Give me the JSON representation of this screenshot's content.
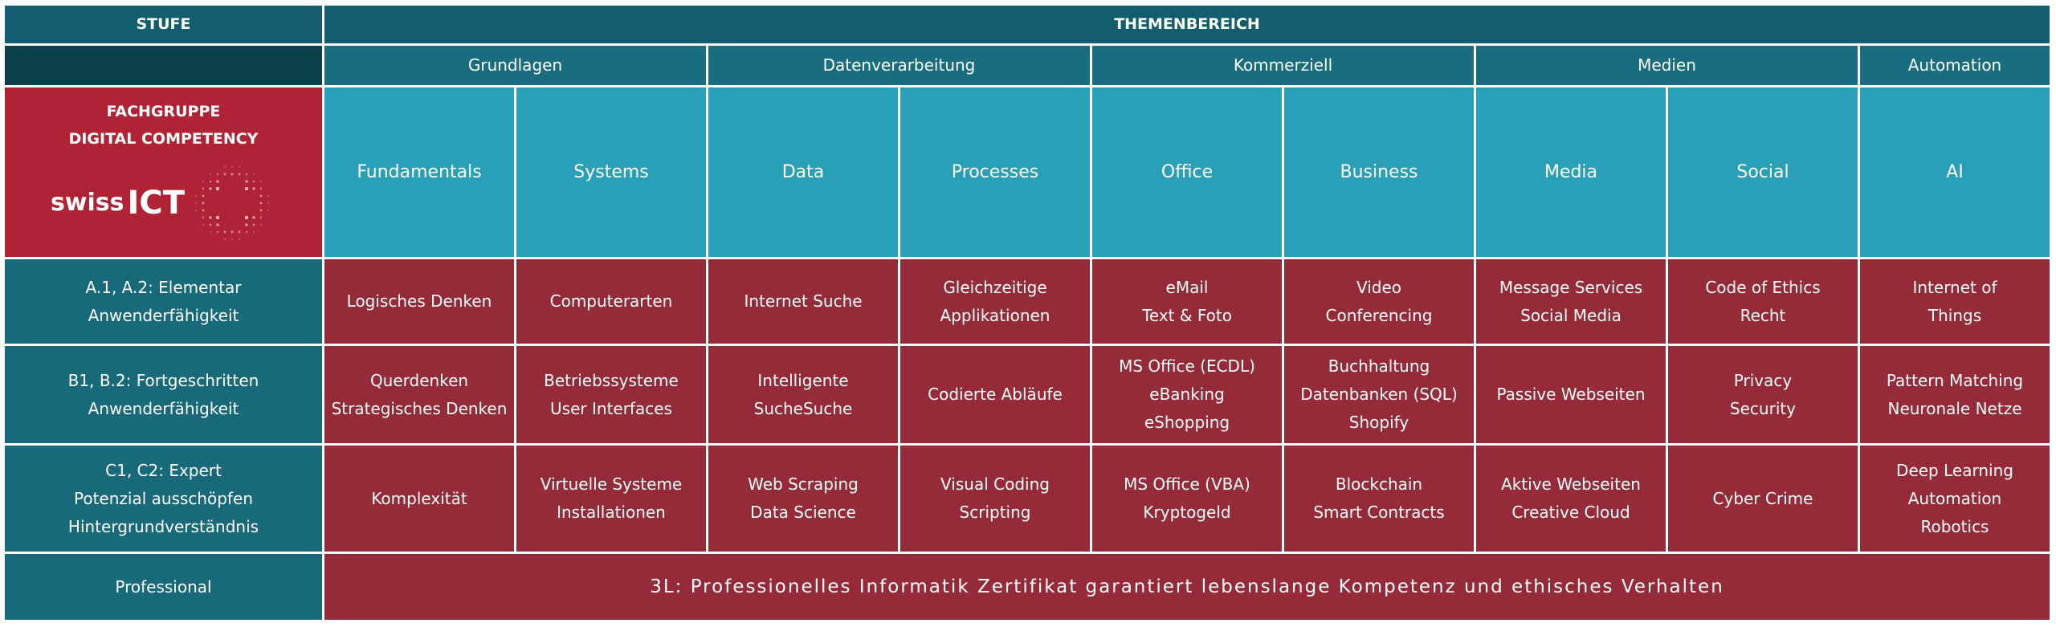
{
  "header": {
    "stufe": "STUFE",
    "themenbereich": "THEMENBEREICH"
  },
  "groups": [
    "Grundlagen",
    "Datenverarbeitung",
    "Kommerziell",
    "Medien",
    "Automation"
  ],
  "logo": {
    "lines": [
      "FACHGRUPPE",
      "DIGITAL COMPETENCY"
    ],
    "brand": "swiss",
    "brand_bold": "ICT"
  },
  "topics": [
    "Fundamentals",
    "Systems",
    "Data",
    "Processes",
    "Office",
    "Business",
    "Media",
    "Social",
    "AI"
  ],
  "rows": [
    {
      "level": [
        "A.1, A.2: Elementar",
        "Anwenderfähigkeit"
      ],
      "cells": [
        [
          "Logisches Denken"
        ],
        [
          "Computerarten"
        ],
        [
          "Internet Suche"
        ],
        [
          "Gleichzeitige",
          "Applikationen"
        ],
        [
          "eMail",
          "Text & Foto"
        ],
        [
          "Video",
          "Conferencing"
        ],
        [
          "Message Services",
          "Social Media"
        ],
        [
          "Code of Ethics",
          "Recht"
        ],
        [
          "Internet of",
          "Things"
        ]
      ]
    },
    {
      "level": [
        "B1, B.2: Fortgeschritten",
        "Anwenderfähigkeit"
      ],
      "cells": [
        [
          "Querdenken",
          "Strategisches Denken"
        ],
        [
          "Betriebssysteme",
          "User Interfaces"
        ],
        [
          "Intelligente SucheSuche"
        ],
        [
          "Codierte Abläufe"
        ],
        [
          "MS Office (ECDL)",
          "eBanking",
          "eShopping"
        ],
        [
          "Buchhaltung",
          "Datenbanken (SQL)",
          "Shopify"
        ],
        [
          "Passive Webseiten"
        ],
        [
          "Privacy",
          "Security"
        ],
        [
          "Pattern Matching",
          "Neuronale Netze"
        ]
      ]
    },
    {
      "level": [
        "C1, C2: Expert",
        "Potenzial ausschöpfen",
        "Hintergrundverständnis"
      ],
      "cells": [
        [
          "Komplexität"
        ],
        [
          "Virtuelle Systeme",
          "Installationen"
        ],
        [
          "Web Scraping",
          "Data Science"
        ],
        [
          "Visual Coding",
          "Scripting"
        ],
        [
          "MS Office (VBA)",
          "Kryptogeld"
        ],
        [
          "Blockchain",
          "Smart Contracts"
        ],
        [
          "Aktive Webseiten",
          "Creative Cloud"
        ],
        [
          "Cyber Crime"
        ],
        [
          "Deep Learning",
          "Automation",
          "Robotics"
        ]
      ]
    }
  ],
  "professional": {
    "level": "Professional",
    "text": "3L: Professionelles Informatik Zertifikat garantiert lebenslange Kompetenz und ethisches Verhalten"
  }
}
